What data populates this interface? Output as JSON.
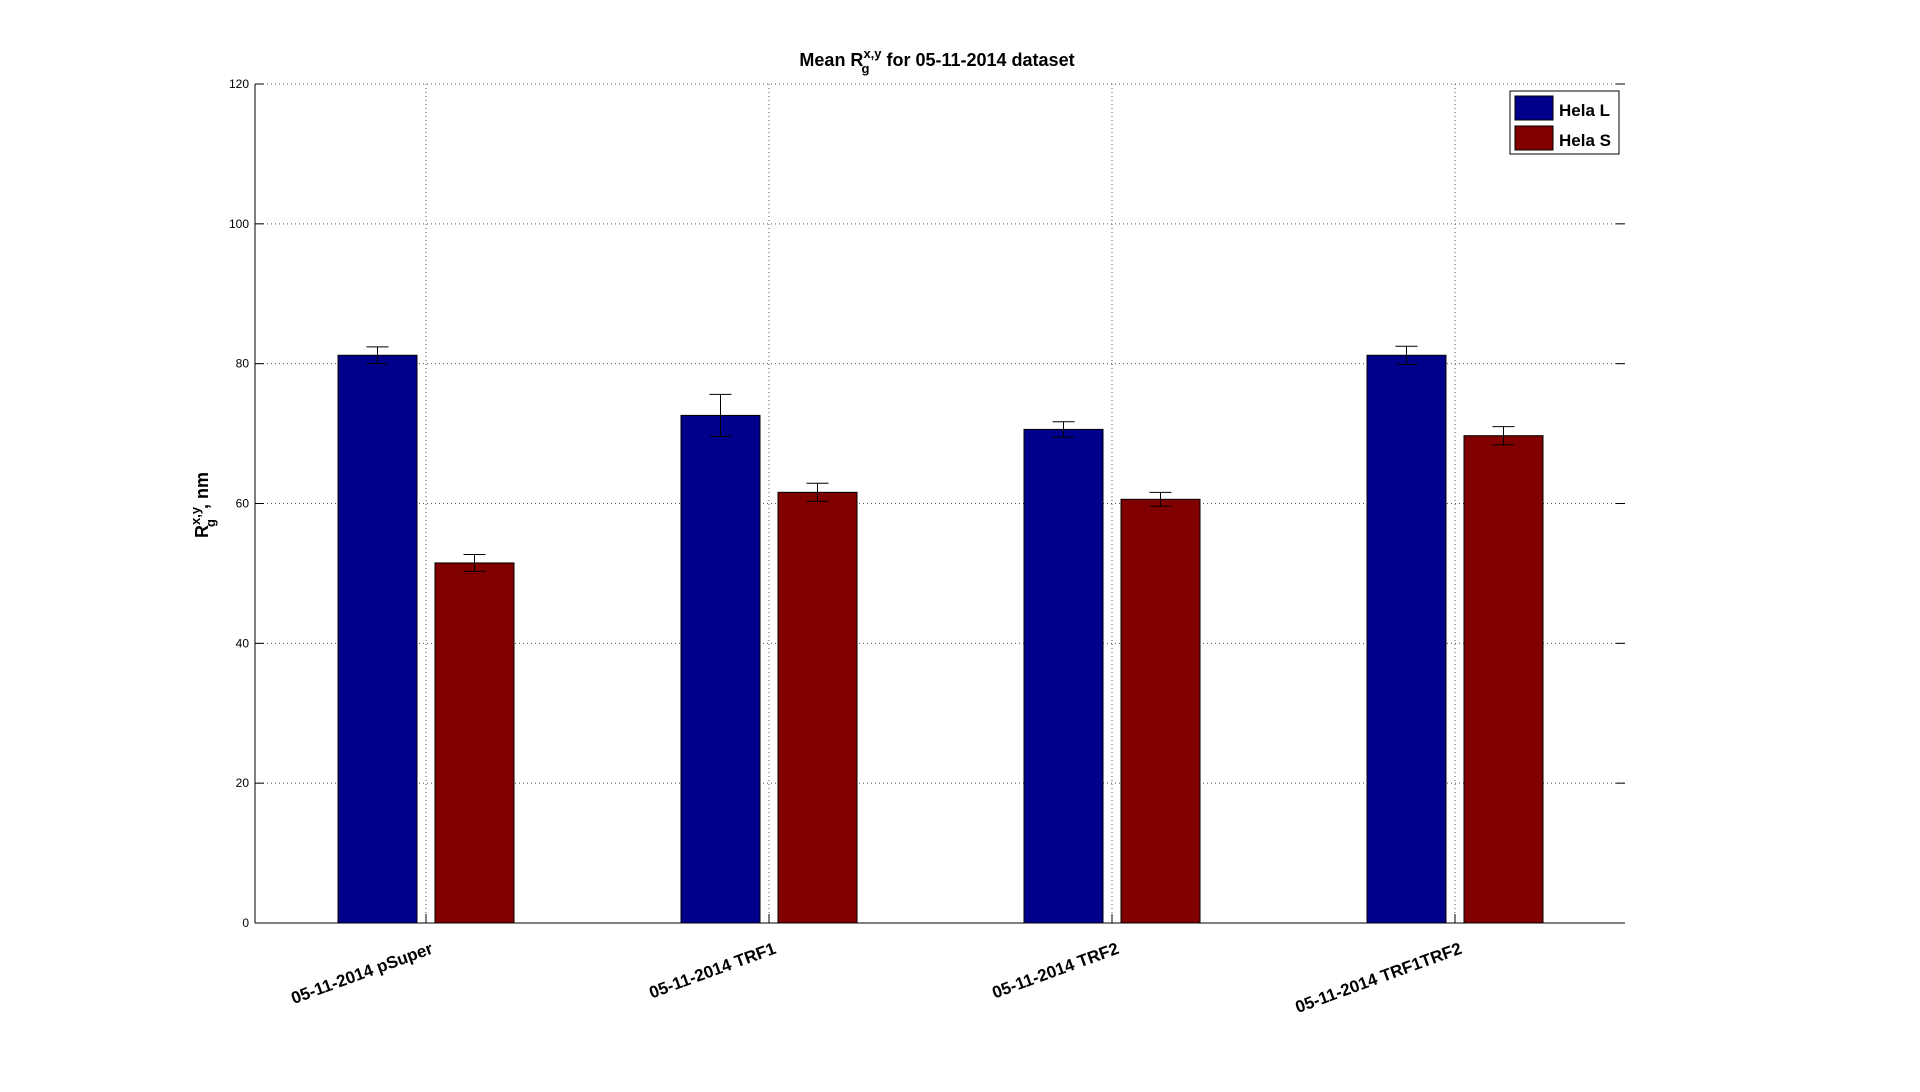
{
  "chart_data": {
    "type": "bar",
    "title_prefix": "Mean R",
    "title_sup": "x,y",
    "title_sub": "g",
    "title_suffix": " for  05-11-2014 dataset",
    "xlabel": "",
    "ylabel_base": "R",
    "ylabel_sup": "x,y",
    "ylabel_sub": "g",
    "ylabel_suffix": ", nm",
    "categories": [
      "05-11-2014 pSuper",
      "05-11-2014 TRF1",
      "05-11-2014 TRF2",
      "05-11-2014 TRF1TRF2"
    ],
    "series": [
      {
        "name": "Hela L",
        "color": "#00008b",
        "values": [
          81.2,
          72.6,
          70.6,
          81.2
        ],
        "errors": [
          1.2,
          3.0,
          1.1,
          1.3
        ]
      },
      {
        "name": "Hela S",
        "color": "#800000",
        "values": [
          51.5,
          61.6,
          60.6,
          69.7
        ],
        "errors": [
          1.2,
          1.3,
          1.0,
          1.3
        ]
      }
    ],
    "ylim": [
      0,
      120
    ],
    "yticks": [
      0,
      20,
      40,
      60,
      80,
      100,
      120
    ],
    "grid": true,
    "legend_position": "top-right"
  }
}
